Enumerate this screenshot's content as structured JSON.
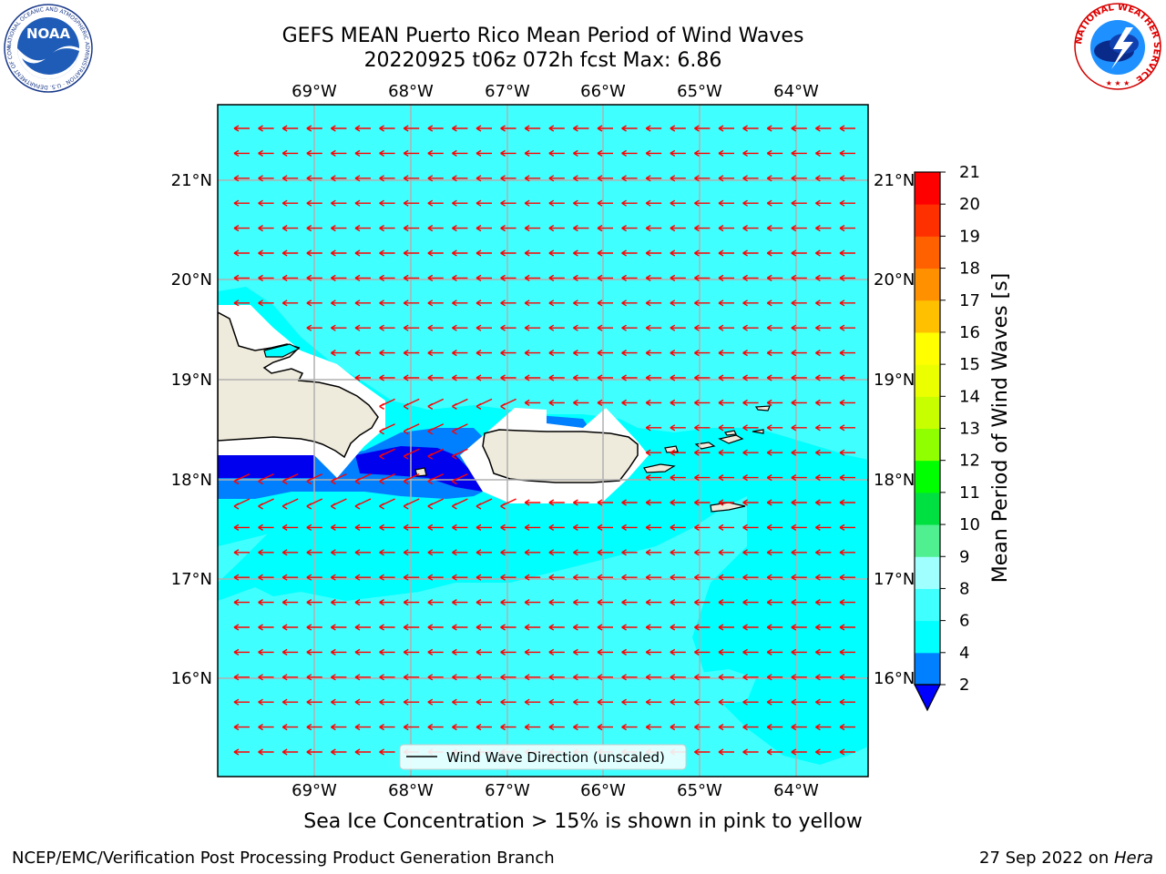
{
  "header": {
    "title_line1": "GEFS MEAN Puerto Rico Mean Period of Wind Waves",
    "title_line2": "20220925 t06z 072h fcst   Max: 6.86"
  },
  "logos": {
    "noaa_text": "NOAA",
    "noaa_ring": "NATIONAL OCEANIC AND ATMOSPHERIC ADMINISTRATION · U.S. DEPARTMENT OF COMMERCE",
    "nws_ring": "NATIONAL WEATHER SERVICE"
  },
  "map": {
    "lon_labels": [
      "69°W",
      "68°W",
      "67°W",
      "66°W",
      "65°W",
      "64°W"
    ],
    "lat_labels": [
      "21°N",
      "20°N",
      "19°N",
      "18°N",
      "17°N",
      "16°N"
    ],
    "legend_label": "Wind Wave Direction (unscaled)",
    "arrow_color": "#ff0000",
    "ocean_color": "#00ffff",
    "land_color": "#efebdc"
  },
  "colorbar": {
    "label": "Mean Period of Wind Waves [s]",
    "ticks": [
      "2",
      "4",
      "6",
      "8",
      "9",
      "10",
      "11",
      "12",
      "13",
      "14",
      "15",
      "16",
      "17",
      "18",
      "19",
      "20",
      "21"
    ],
    "colors": [
      "#0000ff",
      "#0080ff",
      "#00ffff",
      "#40ffff",
      "#a0ffff",
      "#50f090",
      "#00e040",
      "#00ff00",
      "#90ff00",
      "#c8ff00",
      "#ecff00",
      "#ffff00",
      "#ffc000",
      "#ff9000",
      "#ff6000",
      "#ff3000",
      "#ff0000"
    ]
  },
  "caption": "Sea Ice Concentration > 15% is shown in pink to yellow",
  "footer": {
    "left": "NCEP/EMC/Verification Post Processing Product Generation Branch",
    "right_prefix": "27 Sep 2022 on ",
    "right_host": "Hera"
  }
}
